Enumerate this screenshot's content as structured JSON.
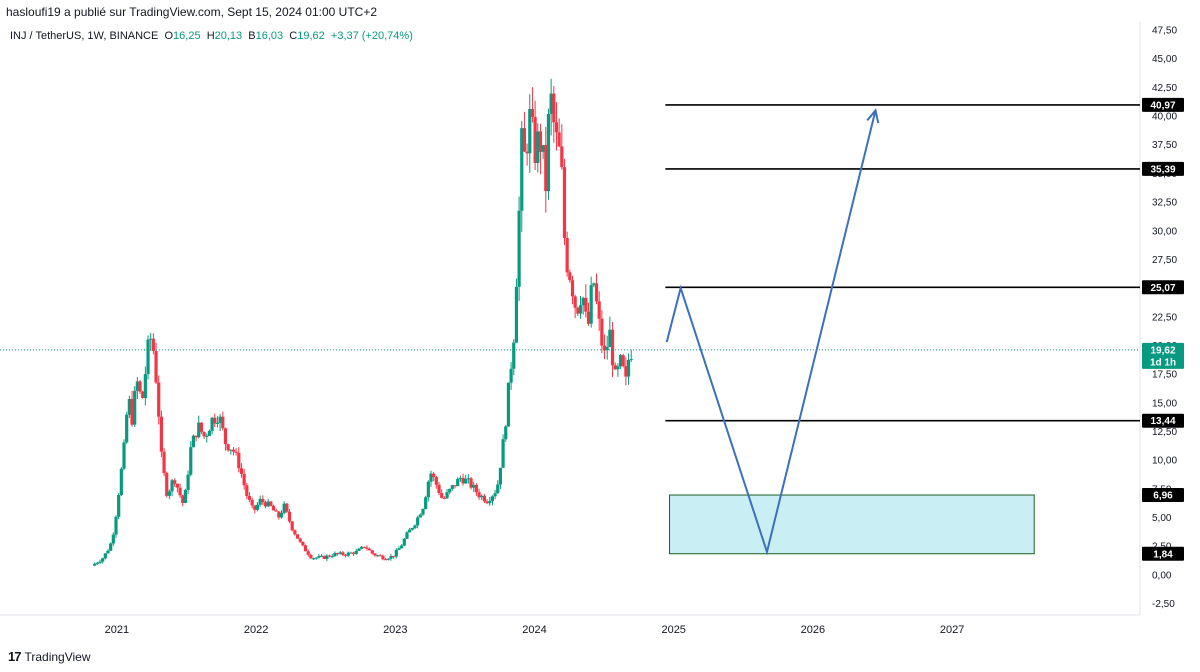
{
  "header": {
    "title": "hasloufi19 a publié sur TradingView.com, Sept 15, 2024 01:00 UTC+2"
  },
  "legend": {
    "symbol": "INJ / TetherUS, 1W, BINANCE",
    "o_label": "O",
    "o": "16,25",
    "h_label": "H",
    "h": "20,13",
    "b_label": "B",
    "b": "16,03",
    "c_label": "C",
    "c": "19,62",
    "change": "+3,37 (+20,74%)"
  },
  "footer": {
    "brand": "TradingView",
    "logo": "17"
  },
  "colors": {
    "up": "#089981",
    "down": "#f23645",
    "arrow": "#3c6fbf",
    "zone_fill": "#c9eef3",
    "zone_border": "#1b5e20"
  },
  "chart_data": {
    "type": "candlestick",
    "symbol": "INJ / TetherUS",
    "interval": "1W",
    "exchange": "BINANCE",
    "last_price": 19.62,
    "last_label": "19,62",
    "countdown": "1d 1h",
    "y_ticks": [
      "47,50",
      "45,00",
      "42,50",
      "40,00",
      "37,50",
      "35,00",
      "32,50",
      "30,00",
      "27,50",
      "25,00",
      "22,50",
      "20,00",
      "17,50",
      "15,00",
      "12,50",
      "10,00",
      "7,50",
      "5,00",
      "2,50",
      "0,00",
      "-2,50"
    ],
    "y_range": [
      -3.5,
      48.2
    ],
    "x_ticks": [
      "2021",
      "2022",
      "2023",
      "2024",
      "2025",
      "2026",
      "2027"
    ],
    "x_range": [
      2020.16,
      2028.35
    ],
    "price_path": [
      [
        2020.84,
        0.8
      ],
      [
        2020.92,
        1.5
      ],
      [
        2020.97,
        2.5
      ],
      [
        2021.0,
        4.0
      ],
      [
        2021.04,
        8.0
      ],
      [
        2021.07,
        11.0
      ],
      [
        2021.1,
        15.5
      ],
      [
        2021.13,
        13.5
      ],
      [
        2021.16,
        17.0
      ],
      [
        2021.2,
        15.0
      ],
      [
        2021.24,
        19.5
      ],
      [
        2021.27,
        21.0
      ],
      [
        2021.31,
        16.0
      ],
      [
        2021.34,
        10.0
      ],
      [
        2021.38,
        7.0
      ],
      [
        2021.43,
        8.5
      ],
      [
        2021.5,
        6.0
      ],
      [
        2021.55,
        11.0
      ],
      [
        2021.6,
        13.0
      ],
      [
        2021.65,
        12.0
      ],
      [
        2021.7,
        13.5
      ],
      [
        2021.75,
        14.0
      ],
      [
        2021.8,
        11.5
      ],
      [
        2021.85,
        11.0
      ],
      [
        2021.9,
        9.5
      ],
      [
        2021.95,
        7.0
      ],
      [
        2022.0,
        5.5
      ],
      [
        2022.05,
        6.5
      ],
      [
        2022.12,
        6.0
      ],
      [
        2022.18,
        5.0
      ],
      [
        2022.22,
        6.0
      ],
      [
        2022.28,
        4.0
      ],
      [
        2022.35,
        2.5
      ],
      [
        2022.42,
        1.5
      ],
      [
        2022.5,
        1.5
      ],
      [
        2022.58,
        1.8
      ],
      [
        2022.66,
        1.8
      ],
      [
        2022.74,
        2.0
      ],
      [
        2022.8,
        2.5
      ],
      [
        2022.86,
        1.8
      ],
      [
        2022.94,
        1.5
      ],
      [
        2023.0,
        1.6
      ],
      [
        2023.06,
        2.5
      ],
      [
        2023.1,
        3.5
      ],
      [
        2023.16,
        4.5
      ],
      [
        2023.22,
        6.0
      ],
      [
        2023.27,
        9.0
      ],
      [
        2023.31,
        8.0
      ],
      [
        2023.36,
        6.5
      ],
      [
        2023.42,
        7.5
      ],
      [
        2023.49,
        8.5
      ],
      [
        2023.55,
        8.0
      ],
      [
        2023.62,
        7.0
      ],
      [
        2023.68,
        6.5
      ],
      [
        2023.75,
        7.5
      ],
      [
        2023.8,
        12.0
      ],
      [
        2023.84,
        17.0
      ],
      [
        2023.87,
        21.0
      ],
      [
        2023.9,
        29.0
      ],
      [
        2023.93,
        38.0
      ],
      [
        2023.95,
        36.0
      ],
      [
        2023.98,
        40.0
      ],
      [
        2024.02,
        37.0
      ],
      [
        2024.06,
        38.0
      ],
      [
        2024.1,
        34.0
      ],
      [
        2024.13,
        42.0
      ],
      [
        2024.17,
        38.0
      ],
      [
        2024.21,
        36.0
      ],
      [
        2024.24,
        28.0
      ],
      [
        2024.28,
        26.0
      ],
      [
        2024.32,
        23.0
      ],
      [
        2024.36,
        25.0
      ],
      [
        2024.4,
        21.0
      ],
      [
        2024.44,
        26.0
      ],
      [
        2024.48,
        22.0
      ],
      [
        2024.52,
        19.0
      ],
      [
        2024.56,
        21.0
      ],
      [
        2024.6,
        17.0
      ],
      [
        2024.64,
        18.5
      ],
      [
        2024.68,
        16.5
      ],
      [
        2024.7,
        19.6
      ]
    ],
    "level_lines": [
      {
        "value": 40.97,
        "label": "40,97"
      },
      {
        "value": 35.39,
        "label": "35,39"
      },
      {
        "value": 25.07,
        "label": "25,07"
      },
      {
        "value": 13.44,
        "label": "13,44"
      }
    ],
    "zone": {
      "top": 6.96,
      "bottom": 1.84,
      "top_label": "6,96",
      "bottom_label": "1,84",
      "x_from": 2024.97,
      "x_to": 2027.59
    },
    "projection_path": [
      [
        2024.95,
        20.3
      ],
      [
        2025.05,
        25.0
      ],
      [
        2025.67,
        2.0
      ],
      [
        2026.45,
        40.5
      ]
    ]
  }
}
